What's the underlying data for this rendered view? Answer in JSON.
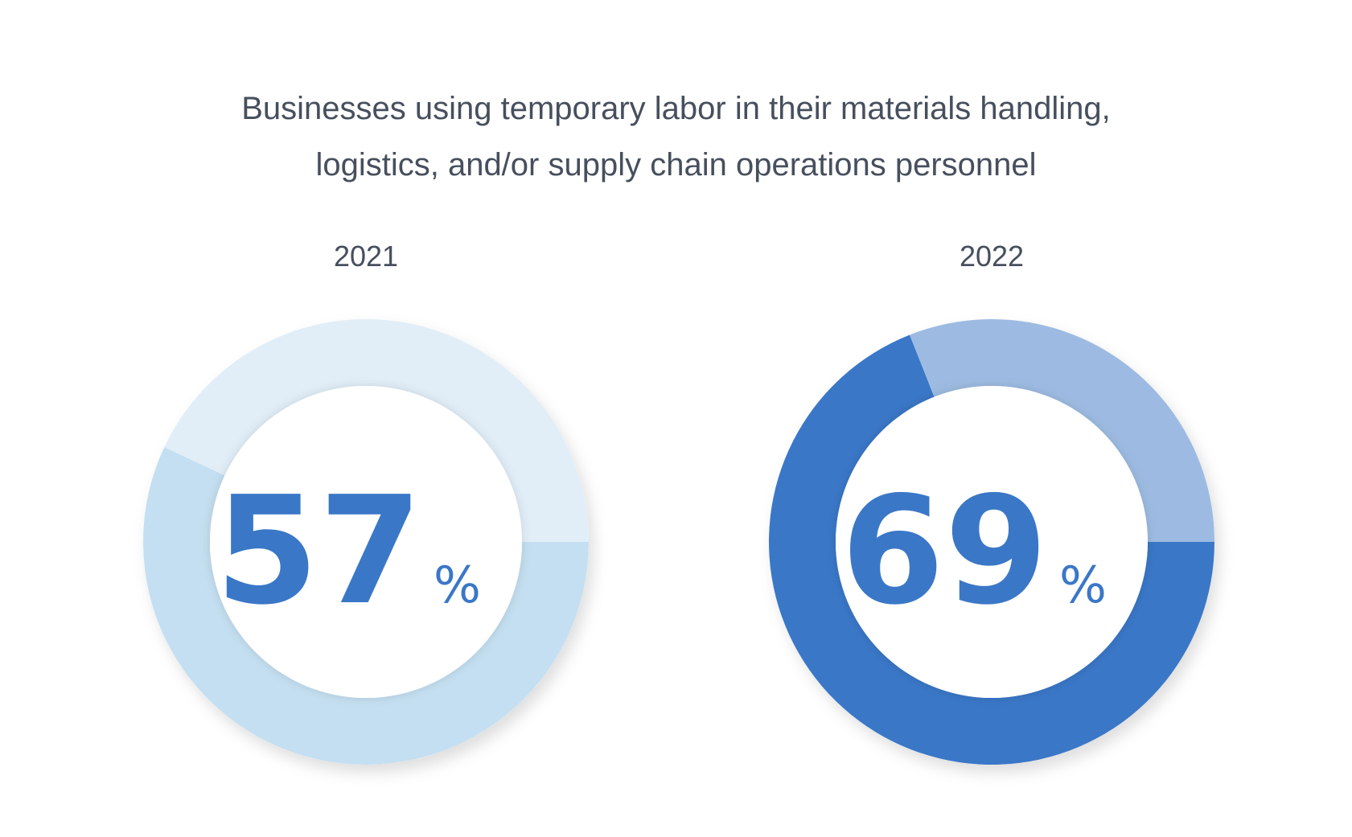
{
  "title_lines": [
    "Businesses using temporary labor in their materials handling,",
    "logistics, and/or supply chain operations personnel"
  ],
  "chart_data": [
    {
      "type": "pie",
      "variant": "donut",
      "label": "2021",
      "value": 57,
      "display": "57",
      "unit": "%",
      "colors": {
        "value": "#c4dff1",
        "remainder": "#e1eef8",
        "text": "#3a77c7"
      },
      "start": "3 o'clock",
      "direction": "clockwise"
    },
    {
      "type": "pie",
      "variant": "donut",
      "label": "2022",
      "value": 69,
      "display": "69",
      "unit": "%",
      "colors": {
        "value": "#3a77c7",
        "remainder": "#9dbbe2",
        "text": "#3a77c7"
      },
      "start": "3 o'clock",
      "direction": "clockwise"
    }
  ]
}
